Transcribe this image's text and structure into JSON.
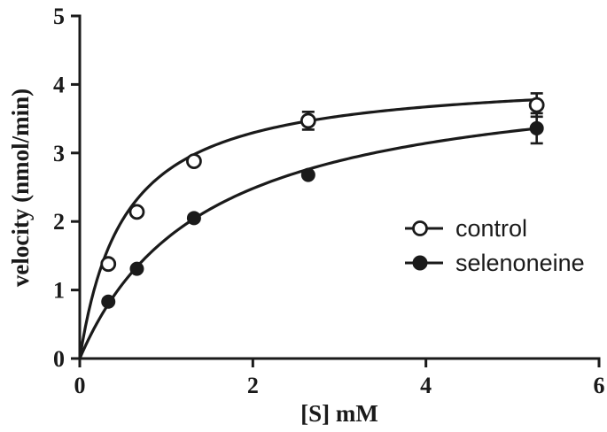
{
  "chart_data": {
    "type": "scatter",
    "title": "",
    "xlabel": "[S] mM",
    "ylabel": "velocity (nmol/min)",
    "xlim": [
      0,
      6
    ],
    "ylim": [
      0,
      5
    ],
    "xticks": [
      0,
      2,
      4,
      6
    ],
    "yticks": [
      0,
      1,
      2,
      3,
      4,
      5
    ],
    "xtick_labels": [
      "0",
      "2",
      "4",
      "6"
    ],
    "ytick_labels": [
      "0",
      "1",
      "2",
      "3",
      "4",
      "5"
    ],
    "grid": false,
    "legend_position": "right",
    "series": [
      {
        "name": "control",
        "marker": "open-circle",
        "x": [
          0.33,
          0.66,
          1.32,
          2.64,
          5.28
        ],
        "y": [
          1.38,
          2.14,
          2.88,
          3.47,
          3.7
        ],
        "error": [
          0.0,
          0.0,
          0.0,
          0.13,
          0.17
        ],
        "fit": {
          "model": "michaelis-menten",
          "vmax": 4.15,
          "km": 0.52
        }
      },
      {
        "name": "selenoneine",
        "marker": "filled-circle",
        "x": [
          0.33,
          0.66,
          1.32,
          2.64,
          5.28
        ],
        "y": [
          0.83,
          1.31,
          2.05,
          2.68,
          3.36
        ],
        "error": [
          0.0,
          0.0,
          0.0,
          0.0,
          0.22
        ],
        "fit": {
          "model": "michaelis-menten",
          "vmax": 4.28,
          "km": 1.45
        }
      }
    ]
  },
  "colors": {
    "ink": "#1a1a1a",
    "background": "#ffffff"
  }
}
